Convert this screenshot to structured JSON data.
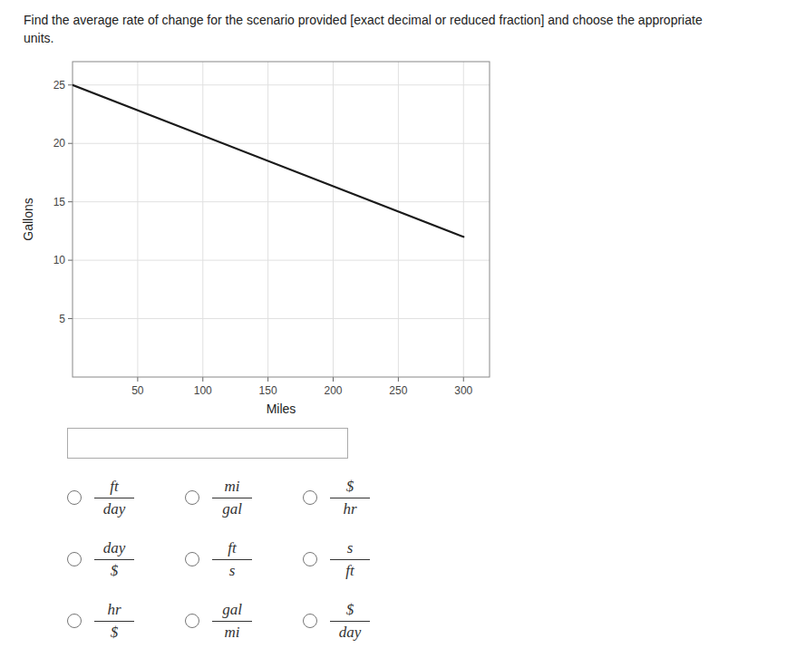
{
  "chart_data": {
    "type": "line",
    "title": "Find the average rate of change for the scenario provided [exact decimal or reduced fraction] and choose the appropriate units.",
    "x": [
      0,
      300
    ],
    "values": [
      25,
      12
    ],
    "color": "#1a1a1a",
    "xlim": [
      0,
      320
    ],
    "ylim": [
      0,
      27
    ],
    "xticks": [
      50,
      100,
      150,
      200,
      250,
      300
    ],
    "yticks": [
      5,
      10,
      15,
      20,
      25
    ],
    "xlabel": "Miles",
    "ylabel": "Gallons",
    "grid": true,
    "annotations": [
      [
        "ft",
        "day"
      ],
      [
        "mi",
        "gal"
      ],
      [
        "$",
        "hr"
      ],
      [
        "day",
        "$"
      ],
      [
        "ft",
        "s"
      ],
      [
        "s",
        "ft"
      ],
      [
        "hr",
        "$"
      ],
      [
        "gal",
        "mi"
      ],
      [
        "$",
        "day"
      ]
    ]
  }
}
